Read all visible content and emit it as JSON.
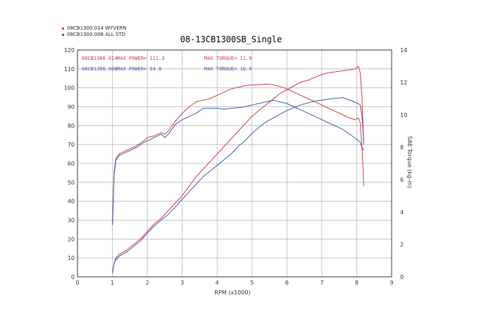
{
  "chart_data": {
    "type": "line",
    "title": "08-13CB1300SB_Single",
    "xlabel": "RPM (x1000)",
    "ylabel_right": "SAE Torque (kg-m)",
    "xlim": [
      0,
      9
    ],
    "ylim_left": [
      0,
      120
    ],
    "ylim_right": [
      0,
      14
    ],
    "x_ticks": [
      "0",
      "1",
      "2",
      "3",
      "4",
      "5",
      "6",
      "7",
      "8",
      "9"
    ],
    "y_left_ticks": [
      "0",
      "10",
      "20",
      "30",
      "40",
      "50",
      "60",
      "70",
      "80",
      "90",
      "100",
      "110",
      "120"
    ],
    "y_right_ticks": [
      "0",
      "2",
      "4",
      "6",
      "8",
      "10",
      "12",
      "14"
    ],
    "grid": true,
    "legend_position": "top-left",
    "legend": [
      {
        "label": "08CB1300.014  WYVERN",
        "color": "#d23a45"
      },
      {
        "label": "08CB1300.008  ALL STD",
        "color": "#3f57a8"
      }
    ],
    "annotations": [
      {
        "run": "08CB1300.014",
        "power_label": "MAX POWER= 111.3",
        "torque_label": "MAX TORQUE= 11.9",
        "color": "#d23a45"
      },
      {
        "run": "08CB1300.008",
        "power_label": "MAX POWER= 94.8",
        "torque_label": "MAX TORQUE= 10.9",
        "color": "#3f57a8"
      }
    ],
    "series": [
      {
        "name": "08CB1300.014 power",
        "axis": "left",
        "color": "#d23a45",
        "points": [
          [
            1.0,
            2
          ],
          [
            1.05,
            7
          ],
          [
            1.1,
            10
          ],
          [
            1.2,
            12
          ],
          [
            1.4,
            14
          ],
          [
            1.6,
            17
          ],
          [
            1.8,
            20
          ],
          [
            2.0,
            24
          ],
          [
            2.2,
            28
          ],
          [
            2.4,
            31
          ],
          [
            2.6,
            35
          ],
          [
            2.8,
            39
          ],
          [
            3.0,
            43
          ],
          [
            3.2,
            48
          ],
          [
            3.4,
            53
          ],
          [
            3.6,
            57
          ],
          [
            3.8,
            61
          ],
          [
            4.0,
            65
          ],
          [
            4.2,
            69
          ],
          [
            4.4,
            73
          ],
          [
            4.6,
            77
          ],
          [
            4.8,
            81
          ],
          [
            5.0,
            85
          ],
          [
            5.2,
            88
          ],
          [
            5.4,
            91
          ],
          [
            5.6,
            94
          ],
          [
            5.8,
            97
          ],
          [
            6.0,
            99
          ],
          [
            6.2,
            101
          ],
          [
            6.4,
            103
          ],
          [
            6.6,
            104
          ],
          [
            6.8,
            105.5
          ],
          [
            7.0,
            107
          ],
          [
            7.2,
            108
          ],
          [
            7.4,
            108.5
          ],
          [
            7.6,
            109
          ],
          [
            7.8,
            109.5
          ],
          [
            7.95,
            110
          ],
          [
            8.05,
            111.3
          ],
          [
            8.1,
            108
          ],
          [
            8.15,
            95
          ],
          [
            8.18,
            80
          ],
          [
            8.2,
            70
          ]
        ]
      },
      {
        "name": "08CB1300.008 power",
        "axis": "left",
        "color": "#3f57a8",
        "points": [
          [
            1.0,
            2
          ],
          [
            1.05,
            7
          ],
          [
            1.1,
            9
          ],
          [
            1.2,
            11
          ],
          [
            1.4,
            13
          ],
          [
            1.6,
            16
          ],
          [
            1.8,
            19
          ],
          [
            2.0,
            23
          ],
          [
            2.2,
            27
          ],
          [
            2.4,
            30
          ],
          [
            2.6,
            33
          ],
          [
            2.8,
            37
          ],
          [
            3.0,
            41
          ],
          [
            3.2,
            45
          ],
          [
            3.4,
            49
          ],
          [
            3.6,
            53
          ],
          [
            3.8,
            56
          ],
          [
            4.0,
            59
          ],
          [
            4.2,
            62
          ],
          [
            4.4,
            65
          ],
          [
            4.6,
            69
          ],
          [
            4.8,
            72
          ],
          [
            5.0,
            76
          ],
          [
            5.2,
            79
          ],
          [
            5.4,
            82
          ],
          [
            5.6,
            84
          ],
          [
            5.8,
            86
          ],
          [
            6.0,
            88
          ],
          [
            6.2,
            89.5
          ],
          [
            6.4,
            91
          ],
          [
            6.6,
            92
          ],
          [
            6.8,
            93
          ],
          [
            7.0,
            93.5
          ],
          [
            7.2,
            94
          ],
          [
            7.4,
            94.5
          ],
          [
            7.6,
            94.8
          ],
          [
            7.8,
            93.5
          ],
          [
            8.0,
            92
          ],
          [
            8.1,
            91
          ],
          [
            8.15,
            85
          ],
          [
            8.2,
            72
          ]
        ]
      },
      {
        "name": "08CB1300.014 torque",
        "axis": "right",
        "color": "#d23a45",
        "points": [
          [
            1.0,
            3.2
          ],
          [
            1.05,
            6.5
          ],
          [
            1.1,
            7.3
          ],
          [
            1.2,
            7.6
          ],
          [
            1.3,
            7.7
          ],
          [
            1.5,
            7.9
          ],
          [
            1.7,
            8.1
          ],
          [
            1.9,
            8.4
          ],
          [
            2.0,
            8.6
          ],
          [
            2.2,
            8.7
          ],
          [
            2.4,
            8.9
          ],
          [
            2.5,
            8.8
          ],
          [
            2.6,
            9.0
          ],
          [
            2.8,
            9.6
          ],
          [
            3.0,
            10.1
          ],
          [
            3.2,
            10.5
          ],
          [
            3.4,
            10.8
          ],
          [
            3.6,
            10.9
          ],
          [
            3.8,
            11.0
          ],
          [
            4.0,
            11.2
          ],
          [
            4.2,
            11.4
          ],
          [
            4.4,
            11.6
          ],
          [
            4.6,
            11.7
          ],
          [
            4.8,
            11.8
          ],
          [
            5.0,
            11.85
          ],
          [
            5.2,
            11.85
          ],
          [
            5.4,
            11.9
          ],
          [
            5.6,
            11.85
          ],
          [
            5.8,
            11.75
          ],
          [
            6.0,
            11.6
          ],
          [
            6.2,
            11.4
          ],
          [
            6.4,
            11.2
          ],
          [
            6.6,
            11.0
          ],
          [
            6.8,
            10.8
          ],
          [
            7.0,
            10.6
          ],
          [
            7.2,
            10.4
          ],
          [
            7.4,
            10.2
          ],
          [
            7.6,
            10.0
          ],
          [
            7.8,
            9.8
          ],
          [
            7.95,
            9.7
          ],
          [
            8.05,
            9.8
          ],
          [
            8.1,
            9.5
          ],
          [
            8.15,
            8.0
          ],
          [
            8.2,
            5.6
          ]
        ]
      },
      {
        "name": "08CB1300.008 torque",
        "axis": "right",
        "color": "#3f57a8",
        "points": [
          [
            1.0,
            3.2
          ],
          [
            1.05,
            6.3
          ],
          [
            1.1,
            7.2
          ],
          [
            1.2,
            7.5
          ],
          [
            1.3,
            7.6
          ],
          [
            1.5,
            7.8
          ],
          [
            1.7,
            8.0
          ],
          [
            1.9,
            8.3
          ],
          [
            2.0,
            8.4
          ],
          [
            2.2,
            8.6
          ],
          [
            2.4,
            8.8
          ],
          [
            2.5,
            8.6
          ],
          [
            2.6,
            8.8
          ],
          [
            2.8,
            9.4
          ],
          [
            3.0,
            9.7
          ],
          [
            3.2,
            9.9
          ],
          [
            3.4,
            10.1
          ],
          [
            3.6,
            10.4
          ],
          [
            3.8,
            10.4
          ],
          [
            4.0,
            10.4
          ],
          [
            4.2,
            10.35
          ],
          [
            4.4,
            10.4
          ],
          [
            4.6,
            10.45
          ],
          [
            4.8,
            10.5
          ],
          [
            5.0,
            10.6
          ],
          [
            5.2,
            10.7
          ],
          [
            5.4,
            10.8
          ],
          [
            5.6,
            10.9
          ],
          [
            5.8,
            10.8
          ],
          [
            6.0,
            10.7
          ],
          [
            6.2,
            10.5
          ],
          [
            6.4,
            10.3
          ],
          [
            6.6,
            10.1
          ],
          [
            6.8,
            9.9
          ],
          [
            7.0,
            9.7
          ],
          [
            7.2,
            9.5
          ],
          [
            7.4,
            9.3
          ],
          [
            7.6,
            9.1
          ],
          [
            7.8,
            8.8
          ],
          [
            8.0,
            8.5
          ],
          [
            8.1,
            8.3
          ],
          [
            8.15,
            8.0
          ],
          [
            8.2,
            7.8
          ]
        ]
      }
    ]
  }
}
